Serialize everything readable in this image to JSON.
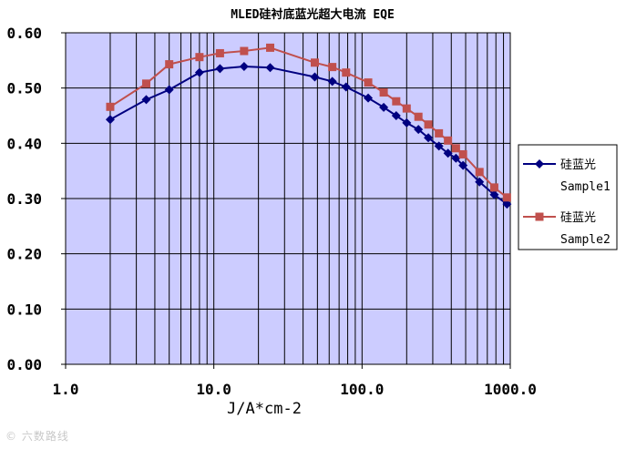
{
  "chart_data": {
    "type": "line",
    "title": "MLED硅衬底蓝光超大电流 EQE",
    "xlabel": "J/A*cm-2",
    "ylabel": "",
    "x_scale": "log",
    "xlim": [
      1,
      1000
    ],
    "ylim": [
      0,
      0.6
    ],
    "x_tick_labels": [
      "1.0",
      "10.0",
      "100.0",
      "1000.0"
    ],
    "y_tick_labels": [
      "0.00",
      "0.10",
      "0.20",
      "0.30",
      "0.40",
      "0.50",
      "0.60"
    ],
    "grid": true,
    "legend_position": "right",
    "plot_background": "#ccccff",
    "series": [
      {
        "name": "硅蓝光 Sample1",
        "legend_line1": "硅蓝光",
        "legend_line2": "Sample1",
        "color": "#000080",
        "marker": "diamond",
        "x": [
          2,
          3.5,
          5,
          8,
          11,
          16,
          24,
          48,
          63,
          78,
          110,
          140,
          170,
          200,
          240,
          280,
          330,
          380,
          430,
          480,
          620,
          780,
          950
        ],
        "y": [
          0.443,
          0.479,
          0.497,
          0.528,
          0.535,
          0.539,
          0.537,
          0.52,
          0.512,
          0.502,
          0.482,
          0.465,
          0.45,
          0.437,
          0.425,
          0.41,
          0.395,
          0.382,
          0.373,
          0.36,
          0.33,
          0.307,
          0.29
        ]
      },
      {
        "name": "硅蓝光 Sample2",
        "legend_line1": "硅蓝光",
        "legend_line2": "Sample2",
        "color": "#c0504d",
        "marker": "square",
        "x": [
          2,
          3.5,
          5,
          8,
          11,
          16,
          24,
          48,
          63,
          78,
          110,
          140,
          170,
          200,
          240,
          280,
          330,
          380,
          430,
          480,
          620,
          780,
          950
        ],
        "y": [
          0.466,
          0.508,
          0.543,
          0.556,
          0.563,
          0.567,
          0.573,
          0.546,
          0.538,
          0.528,
          0.51,
          0.492,
          0.476,
          0.463,
          0.448,
          0.434,
          0.418,
          0.405,
          0.391,
          0.38,
          0.348,
          0.32,
          0.302
        ]
      }
    ]
  },
  "watermark": "© 六数路线"
}
